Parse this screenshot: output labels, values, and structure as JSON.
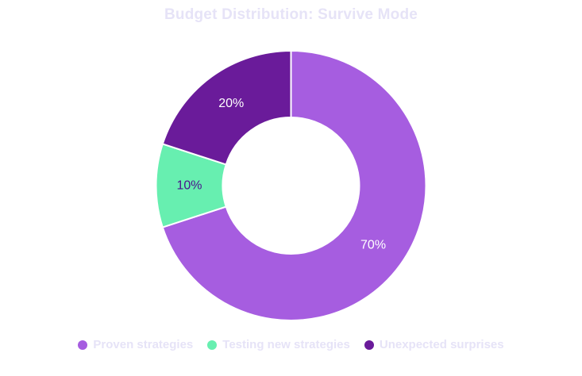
{
  "chart_data": {
    "type": "pie",
    "title": "Budget Distribution: Survive Mode",
    "categories": [
      "Proven strategies",
      "Testing new strategies",
      "Unexpected surprises"
    ],
    "values": [
      70,
      10,
      20
    ],
    "data_labels": [
      "70%",
      "10%",
      "20%"
    ],
    "colors": [
      "#a65de0",
      "#67efb0",
      "#6a1b9a"
    ],
    "label_colors": [
      "#ffffff",
      "#4a148c",
      "#ffffff"
    ],
    "donut": true,
    "legend_position": "bottom"
  }
}
